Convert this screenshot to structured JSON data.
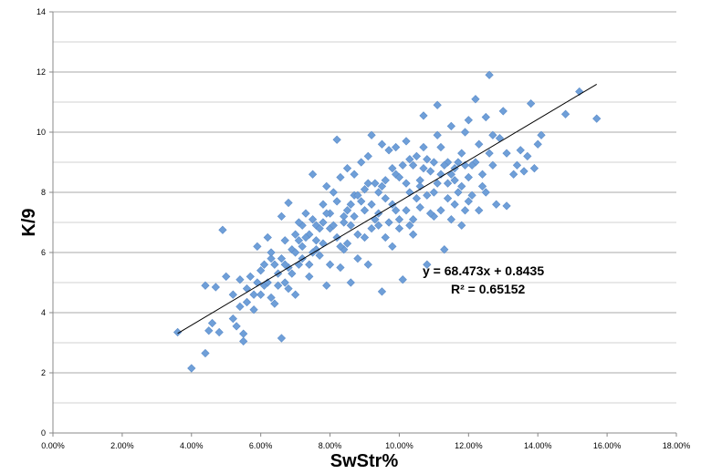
{
  "chart_data": {
    "type": "scatter",
    "title": "",
    "xlabel": "SwStr%",
    "ylabel": "K/9",
    "xlim": [
      0,
      0.18
    ],
    "ylim": [
      0,
      14
    ],
    "x_ticks": [
      0,
      0.02,
      0.04,
      0.06,
      0.08,
      0.1,
      0.12,
      0.14,
      0.16,
      0.18
    ],
    "x_tick_labels": [
      "0.00%",
      "2.00%",
      "4.00%",
      "6.00%",
      "8.00%",
      "10.00%",
      "12.00%",
      "14.00%",
      "16.00%",
      "18.00%"
    ],
    "y_ticks": [
      0,
      2,
      4,
      6,
      8,
      10,
      12,
      14
    ],
    "y_tick_labels": [
      "0",
      "2",
      "4",
      "6",
      "8",
      "10",
      "12",
      "14"
    ],
    "grid": "horizontal major and minor",
    "legend": "none",
    "marker": "diamond",
    "marker_color": "#6f9fd8",
    "trendline": {
      "type": "linear",
      "slope": 68.473,
      "intercept": 0.8435,
      "x_range": [
        0.036,
        0.157
      ],
      "color": "#000000",
      "equation_label": "y = 68.473x + 0.8435",
      "r2_label": "R² = 0.65152"
    },
    "series": [
      {
        "values": [
          [
            0.036,
            3.35
          ],
          [
            0.04,
            2.15
          ],
          [
            0.044,
            2.65
          ],
          [
            0.044,
            4.9
          ],
          [
            0.045,
            3.4
          ],
          [
            0.046,
            3.65
          ],
          [
            0.047,
            4.85
          ],
          [
            0.048,
            3.35
          ],
          [
            0.049,
            6.75
          ],
          [
            0.05,
            5.2
          ],
          [
            0.052,
            3.8
          ],
          [
            0.053,
            3.55
          ],
          [
            0.055,
            3.05
          ],
          [
            0.055,
            3.3
          ],
          [
            0.054,
            5.1
          ],
          [
            0.056,
            4.35
          ],
          [
            0.058,
            4.6
          ],
          [
            0.059,
            6.2
          ],
          [
            0.06,
            5.4
          ],
          [
            0.062,
            6.5
          ],
          [
            0.063,
            5.8
          ],
          [
            0.064,
            4.3
          ],
          [
            0.066,
            3.15
          ],
          [
            0.066,
            7.2
          ],
          [
            0.067,
            5.0
          ],
          [
            0.068,
            7.65
          ],
          [
            0.069,
            6.1
          ],
          [
            0.07,
            4.6
          ],
          [
            0.071,
            5.6
          ],
          [
            0.072,
            6.9
          ],
          [
            0.073,
            7.3
          ],
          [
            0.074,
            5.2
          ],
          [
            0.075,
            8.6
          ],
          [
            0.076,
            6.4
          ],
          [
            0.077,
            5.9
          ],
          [
            0.078,
            7.6
          ],
          [
            0.079,
            4.9
          ],
          [
            0.08,
            6.8
          ],
          [
            0.081,
            8.0
          ],
          [
            0.082,
            9.75
          ],
          [
            0.083,
            5.5
          ],
          [
            0.084,
            7.2
          ],
          [
            0.085,
            8.8
          ],
          [
            0.085,
            6.3
          ],
          [
            0.086,
            5.0
          ],
          [
            0.087,
            7.9
          ],
          [
            0.088,
            6.6
          ],
          [
            0.089,
            9.0
          ],
          [
            0.09,
            7.4
          ],
          [
            0.091,
            5.6
          ],
          [
            0.092,
            9.9
          ],
          [
            0.093,
            8.3
          ],
          [
            0.094,
            6.9
          ],
          [
            0.095,
            4.7
          ],
          [
            0.096,
            7.8
          ],
          [
            0.097,
            9.4
          ],
          [
            0.098,
            6.2
          ],
          [
            0.099,
            8.6
          ],
          [
            0.1,
            7.1
          ],
          [
            0.101,
            5.1
          ],
          [
            0.102,
            9.7
          ],
          [
            0.103,
            8.0
          ],
          [
            0.104,
            6.6
          ],
          [
            0.105,
            9.2
          ],
          [
            0.106,
            7.5
          ],
          [
            0.107,
            10.55
          ],
          [
            0.108,
            5.6
          ],
          [
            0.109,
            8.7
          ],
          [
            0.11,
            7.2
          ],
          [
            0.111,
            10.9
          ],
          [
            0.112,
            9.5
          ],
          [
            0.113,
            6.1
          ],
          [
            0.114,
            8.3
          ],
          [
            0.115,
            10.2
          ],
          [
            0.116,
            7.6
          ],
          [
            0.117,
            9.0
          ],
          [
            0.118,
            6.9
          ],
          [
            0.119,
            8.9
          ],
          [
            0.12,
            10.4
          ],
          [
            0.121,
            7.9
          ],
          [
            0.122,
            11.1
          ],
          [
            0.123,
            9.6
          ],
          [
            0.124,
            8.2
          ],
          [
            0.125,
            10.5
          ],
          [
            0.126,
            11.9
          ],
          [
            0.127,
            8.9
          ],
          [
            0.128,
            7.6
          ],
          [
            0.129,
            9.8
          ],
          [
            0.13,
            10.7
          ],
          [
            0.131,
            7.55
          ],
          [
            0.133,
            8.6
          ],
          [
            0.135,
            9.4
          ],
          [
            0.136,
            8.7
          ],
          [
            0.137,
            9.2
          ],
          [
            0.138,
            10.95
          ],
          [
            0.139,
            8.8
          ],
          [
            0.14,
            9.6
          ],
          [
            0.141,
            9.9
          ],
          [
            0.148,
            10.6
          ],
          [
            0.152,
            11.35
          ],
          [
            0.157,
            10.45
          ],
          [
            0.058,
            4.1
          ],
          [
            0.061,
            4.9
          ],
          [
            0.065,
            5.3
          ],
          [
            0.068,
            5.5
          ],
          [
            0.07,
            6.0
          ],
          [
            0.072,
            6.2
          ],
          [
            0.074,
            6.6
          ],
          [
            0.076,
            6.9
          ],
          [
            0.078,
            7.0
          ],
          [
            0.08,
            7.3
          ],
          [
            0.082,
            6.5
          ],
          [
            0.084,
            7.0
          ],
          [
            0.086,
            7.6
          ],
          [
            0.088,
            7.9
          ],
          [
            0.09,
            8.1
          ],
          [
            0.092,
            7.6
          ],
          [
            0.094,
            8.0
          ],
          [
            0.096,
            8.4
          ],
          [
            0.098,
            8.8
          ],
          [
            0.1,
            8.5
          ],
          [
            0.102,
            8.3
          ],
          [
            0.104,
            8.9
          ],
          [
            0.106,
            8.4
          ],
          [
            0.108,
            9.1
          ],
          [
            0.11,
            8.0
          ],
          [
            0.112,
            8.6
          ],
          [
            0.114,
            9.0
          ],
          [
            0.116,
            8.8
          ],
          [
            0.118,
            9.3
          ],
          [
            0.12,
            8.5
          ],
          [
            0.062,
            5.0
          ],
          [
            0.066,
            5.8
          ],
          [
            0.07,
            6.6
          ],
          [
            0.074,
            5.6
          ],
          [
            0.078,
            6.3
          ],
          [
            0.082,
            7.7
          ],
          [
            0.086,
            6.9
          ],
          [
            0.09,
            6.5
          ],
          [
            0.094,
            7.3
          ],
          [
            0.098,
            7.6
          ],
          [
            0.102,
            7.4
          ],
          [
            0.106,
            8.2
          ],
          [
            0.11,
            9.0
          ],
          [
            0.114,
            7.8
          ],
          [
            0.118,
            8.2
          ],
          [
            0.122,
            9.0
          ],
          [
            0.126,
            9.3
          ],
          [
            0.06,
            4.6
          ],
          [
            0.064,
            5.6
          ],
          [
            0.068,
            4.8
          ],
          [
            0.072,
            5.8
          ],
          [
            0.076,
            6.1
          ],
          [
            0.08,
            5.6
          ],
          [
            0.084,
            6.1
          ],
          [
            0.088,
            5.8
          ],
          [
            0.092,
            6.8
          ],
          [
            0.096,
            6.5
          ],
          [
            0.1,
            6.8
          ],
          [
            0.104,
            7.1
          ],
          [
            0.108,
            7.9
          ],
          [
            0.112,
            7.4
          ],
          [
            0.116,
            8.4
          ],
          [
            0.12,
            7.7
          ],
          [
            0.124,
            8.6
          ],
          [
            0.057,
            5.2
          ],
          [
            0.063,
            6.0
          ],
          [
            0.067,
            6.4
          ],
          [
            0.071,
            7.0
          ],
          [
            0.075,
            7.1
          ],
          [
            0.079,
            8.2
          ],
          [
            0.083,
            8.5
          ],
          [
            0.087,
            8.6
          ],
          [
            0.091,
            9.2
          ],
          [
            0.095,
            9.6
          ],
          [
            0.099,
            9.5
          ],
          [
            0.103,
            9.1
          ],
          [
            0.107,
            9.5
          ],
          [
            0.111,
            9.9
          ],
          [
            0.115,
            8.6
          ],
          [
            0.119,
            10.0
          ],
          [
            0.123,
            7.4
          ],
          [
            0.127,
            9.9
          ],
          [
            0.131,
            9.3
          ],
          [
            0.134,
            8.9
          ],
          [
            0.052,
            4.6
          ],
          [
            0.054,
            4.2
          ],
          [
            0.056,
            4.8
          ],
          [
            0.059,
            5.0
          ],
          [
            0.061,
            5.6
          ],
          [
            0.063,
            4.5
          ],
          [
            0.065,
            4.9
          ],
          [
            0.067,
            5.6
          ],
          [
            0.069,
            5.3
          ],
          [
            0.071,
            6.4
          ],
          [
            0.073,
            6.5
          ],
          [
            0.075,
            6.0
          ],
          [
            0.077,
            6.8
          ],
          [
            0.079,
            7.3
          ],
          [
            0.081,
            6.9
          ],
          [
            0.083,
            6.2
          ],
          [
            0.085,
            7.4
          ],
          [
            0.087,
            7.2
          ],
          [
            0.089,
            7.7
          ],
          [
            0.091,
            8.3
          ],
          [
            0.093,
            7.1
          ],
          [
            0.095,
            8.2
          ],
          [
            0.097,
            7.0
          ],
          [
            0.099,
            7.4
          ],
          [
            0.101,
            8.9
          ],
          [
            0.103,
            6.9
          ],
          [
            0.105,
            7.8
          ],
          [
            0.107,
            8.8
          ],
          [
            0.109,
            7.3
          ],
          [
            0.111,
            8.3
          ],
          [
            0.113,
            8.9
          ],
          [
            0.115,
            7.1
          ],
          [
            0.117,
            8.0
          ],
          [
            0.119,
            7.4
          ],
          [
            0.121,
            8.9
          ],
          [
            0.125,
            8.0
          ]
        ]
      }
    ]
  }
}
